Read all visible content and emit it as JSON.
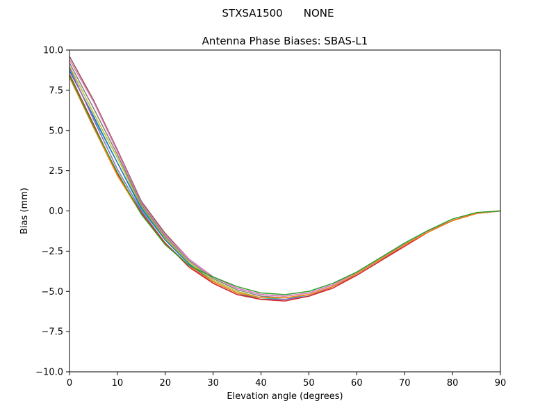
{
  "figure": {
    "suptitle_left": "STXSA1500",
    "suptitle_right": "NONE"
  },
  "chart_data": {
    "type": "line",
    "title": "Antenna Phase Biases: SBAS-L1",
    "xlabel": "Elevation angle (degrees)",
    "ylabel": "Bias (mm)",
    "xlim": [
      0,
      90
    ],
    "ylim": [
      -10,
      10
    ],
    "xticks": [
      0,
      10,
      20,
      30,
      40,
      50,
      60,
      70,
      80,
      90
    ],
    "xtick_labels": [
      "0",
      "10",
      "20",
      "30",
      "40",
      "50",
      "60",
      "70",
      "80",
      "90"
    ],
    "yticks": [
      10,
      7.5,
      5,
      2.5,
      0,
      -2.5,
      -5,
      -7.5,
      -10
    ],
    "ytick_labels": [
      "10.0",
      "7.5",
      "5.0",
      "2.5",
      "0.0",
      "−2.5",
      "−5.0",
      "−7.5",
      "−10.0"
    ],
    "grid": false,
    "legend": "none",
    "x": [
      0,
      5,
      10,
      15,
      20,
      25,
      30,
      35,
      40,
      45,
      50,
      55,
      60,
      65,
      70,
      75,
      80,
      85,
      90
    ],
    "series": [
      {
        "color": "#8c564b",
        "values": [
          9.6,
          6.9,
          3.8,
          0.6,
          -1.4,
          -3.0,
          -4.1,
          -4.8,
          -5.2,
          -5.3,
          -5.1,
          -4.6,
          -3.8,
          -2.9,
          -2.0,
          -1.2,
          -0.6,
          -0.15,
          0.0
        ]
      },
      {
        "color": "#e377c2",
        "values": [
          9.4,
          6.8,
          3.7,
          0.5,
          -1.5,
          -3.0,
          -4.1,
          -4.8,
          -5.2,
          -5.3,
          -5.1,
          -4.6,
          -3.8,
          -2.9,
          -2.0,
          -1.2,
          -0.6,
          -0.15,
          0.0
        ]
      },
      {
        "color": "#7f7f7f",
        "values": [
          9.2,
          6.4,
          3.5,
          0.4,
          -1.6,
          -3.1,
          -4.2,
          -4.9,
          -5.3,
          -5.4,
          -5.2,
          -4.7,
          -3.9,
          -3.0,
          -2.1,
          -1.3,
          -0.6,
          -0.15,
          0.0
        ]
      },
      {
        "color": "#bcbd22",
        "values": [
          9.0,
          6.1,
          3.3,
          0.3,
          -1.7,
          -3.2,
          -4.3,
          -5.0,
          -5.4,
          -5.4,
          -5.2,
          -4.7,
          -3.9,
          -3.0,
          -2.1,
          -1.3,
          -0.6,
          -0.15,
          0.0
        ]
      },
      {
        "color": "#17becf",
        "values": [
          8.8,
          5.8,
          3.0,
          0.1,
          -1.8,
          -3.3,
          -4.4,
          -5.1,
          -5.4,
          -5.5,
          -5.2,
          -4.7,
          -3.9,
          -3.0,
          -2.1,
          -1.3,
          -0.6,
          -0.15,
          0.0
        ]
      },
      {
        "color": "#1f77b4",
        "values": [
          8.7,
          5.9,
          3.0,
          0.2,
          -1.8,
          -3.3,
          -4.4,
          -5.1,
          -5.5,
          -5.5,
          -5.3,
          -4.7,
          -3.9,
          -3.0,
          -2.1,
          -1.3,
          -0.6,
          -0.15,
          0.0
        ]
      },
      {
        "color": "#9467bd",
        "values": [
          8.9,
          5.7,
          2.6,
          0.0,
          -2.0,
          -3.4,
          -4.5,
          -5.2,
          -5.5,
          -5.5,
          -5.3,
          -4.7,
          -4.0,
          -3.1,
          -2.1,
          -1.3,
          -0.6,
          -0.15,
          0.0
        ]
      },
      {
        "color": "#d62728",
        "values": [
          8.5,
          5.4,
          2.3,
          -0.1,
          -2.0,
          -3.5,
          -4.5,
          -5.2,
          -5.5,
          -5.6,
          -5.3,
          -4.8,
          -4.0,
          -3.1,
          -2.2,
          -1.3,
          -0.6,
          -0.15,
          0.0
        ]
      },
      {
        "color": "#ff7f0e",
        "values": [
          8.3,
          5.2,
          2.2,
          -0.2,
          -2.1,
          -3.4,
          -4.4,
          -5.1,
          -5.4,
          -5.4,
          -5.2,
          -4.7,
          -3.9,
          -3.0,
          -2.1,
          -1.3,
          -0.6,
          -0.15,
          0.0
        ]
      },
      {
        "color": "#2ca02c",
        "values": [
          8.4,
          5.3,
          2.4,
          -0.2,
          -2.1,
          -3.4,
          -4.1,
          -4.7,
          -5.1,
          -5.2,
          -5.0,
          -4.5,
          -3.8,
          -2.9,
          -2.0,
          -1.2,
          -0.5,
          -0.1,
          0.0
        ]
      }
    ]
  }
}
